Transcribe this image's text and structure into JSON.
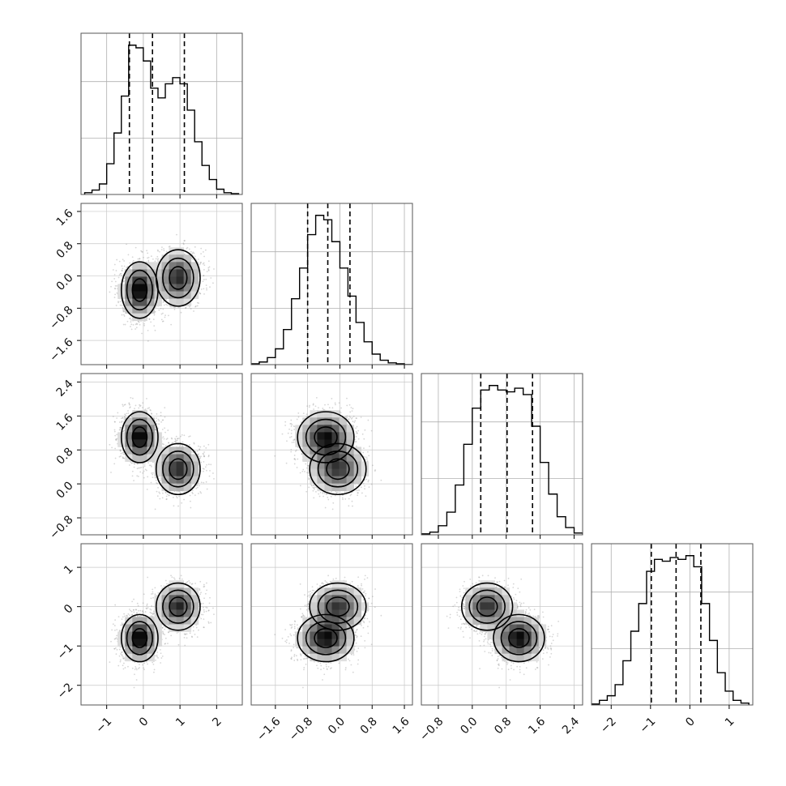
{
  "chart_data": {
    "type": "corner",
    "title": "",
    "n_params": 4,
    "params": [
      {
        "label": "",
        "range": [
          -1.7,
          2.7
        ],
        "ticks": [
          -1,
          0,
          1,
          2
        ],
        "tick_labels": [
          "−1",
          "0",
          "1",
          "2"
        ],
        "quantiles": [
          -0.38,
          0.25,
          1.12
        ],
        "hist": {
          "bins": [
            -1.6,
            -1.4,
            -1.2,
            -1.0,
            -0.8,
            -0.6,
            -0.4,
            -0.2,
            0.0,
            0.2,
            0.4,
            0.6,
            0.8,
            1.0,
            1.2,
            1.4,
            1.6,
            1.8,
            2.0,
            2.2,
            2.4,
            2.6
          ],
          "counts": [
            2,
            5,
            12,
            35,
            70,
            112,
            170,
            167,
            152,
            121,
            110,
            126,
            133,
            126,
            96,
            60,
            33,
            17,
            6,
            2,
            1
          ]
        }
      },
      {
        "label": "",
        "range": [
          -2.2,
          1.8
        ],
        "ticks": [
          -1.6,
          -0.8,
          0.0,
          0.8,
          1.6
        ],
        "tick_labels": [
          "−1.6",
          "−0.8",
          "0.0",
          "0.8",
          "1.6"
        ],
        "quantiles": [
          -0.8,
          -0.3,
          0.25
        ],
        "hist": {
          "bins": [
            -2.2,
            -2.0,
            -1.8,
            -1.6,
            -1.4,
            -1.2,
            -1.0,
            -0.8,
            -0.6,
            -0.4,
            -0.2,
            0.0,
            0.2,
            0.4,
            0.6,
            0.8,
            1.0,
            1.2,
            1.4,
            1.6,
            1.8
          ],
          "counts": [
            1,
            3,
            8,
            18,
            40,
            75,
            110,
            148,
            170,
            165,
            140,
            110,
            78,
            48,
            26,
            12,
            5,
            2,
            1,
            0
          ]
        }
      },
      {
        "label": "",
        "range": [
          -1.2,
          2.6
        ],
        "ticks": [
          -0.8,
          0.0,
          0.8,
          1.6,
          2.4
        ],
        "tick_labels": [
          "−0.8",
          "0.0",
          "0.8",
          "1.6",
          "2.4"
        ],
        "quantiles": [
          0.2,
          0.82,
          1.42
        ],
        "hist": {
          "bins": [
            -1.2,
            -1.0,
            -0.8,
            -0.6,
            -0.4,
            -0.2,
            0.0,
            0.2,
            0.4,
            0.6,
            0.8,
            1.0,
            1.2,
            1.4,
            1.6,
            1.8,
            2.0,
            2.2,
            2.4,
            2.6
          ],
          "counts": [
            1,
            3,
            10,
            25,
            55,
            100,
            140,
            160,
            165,
            160,
            158,
            162,
            155,
            120,
            80,
            45,
            20,
            8,
            2
          ]
        }
      },
      {
        "label": "",
        "range": [
          -2.5,
          1.6
        ],
        "ticks": [
          -2,
          -1,
          0,
          1
        ],
        "tick_labels": [
          "−2",
          "−1",
          "0",
          "1"
        ],
        "quantiles": [
          -0.98,
          -0.35,
          0.28
        ],
        "hist": {
          "bins": [
            -2.5,
            -2.3,
            -2.1,
            -1.9,
            -1.7,
            -1.5,
            -1.3,
            -1.1,
            -0.9,
            -0.7,
            -0.5,
            -0.3,
            -0.1,
            0.1,
            0.3,
            0.5,
            0.7,
            0.9,
            1.1,
            1.3,
            1.5
          ],
          "counts": [
            1,
            5,
            10,
            22,
            48,
            80,
            110,
            145,
            158,
            156,
            160,
            158,
            162,
            150,
            110,
            70,
            35,
            15,
            5,
            2
          ]
        }
      }
    ],
    "clusters": [
      {
        "mean": [
          -0.1,
          -0.35,
          1.1,
          -0.8
        ],
        "sd": [
          0.25,
          0.35,
          0.3,
          0.3
        ],
        "weight": 0.55
      },
      {
        "mean": [
          0.95,
          -0.05,
          0.35,
          0.0
        ],
        "sd": [
          0.3,
          0.35,
          0.3,
          0.3
        ],
        "weight": 0.45
      }
    ],
    "grid": true,
    "quantile_line_style": "dashed",
    "contour_levels": 3
  }
}
